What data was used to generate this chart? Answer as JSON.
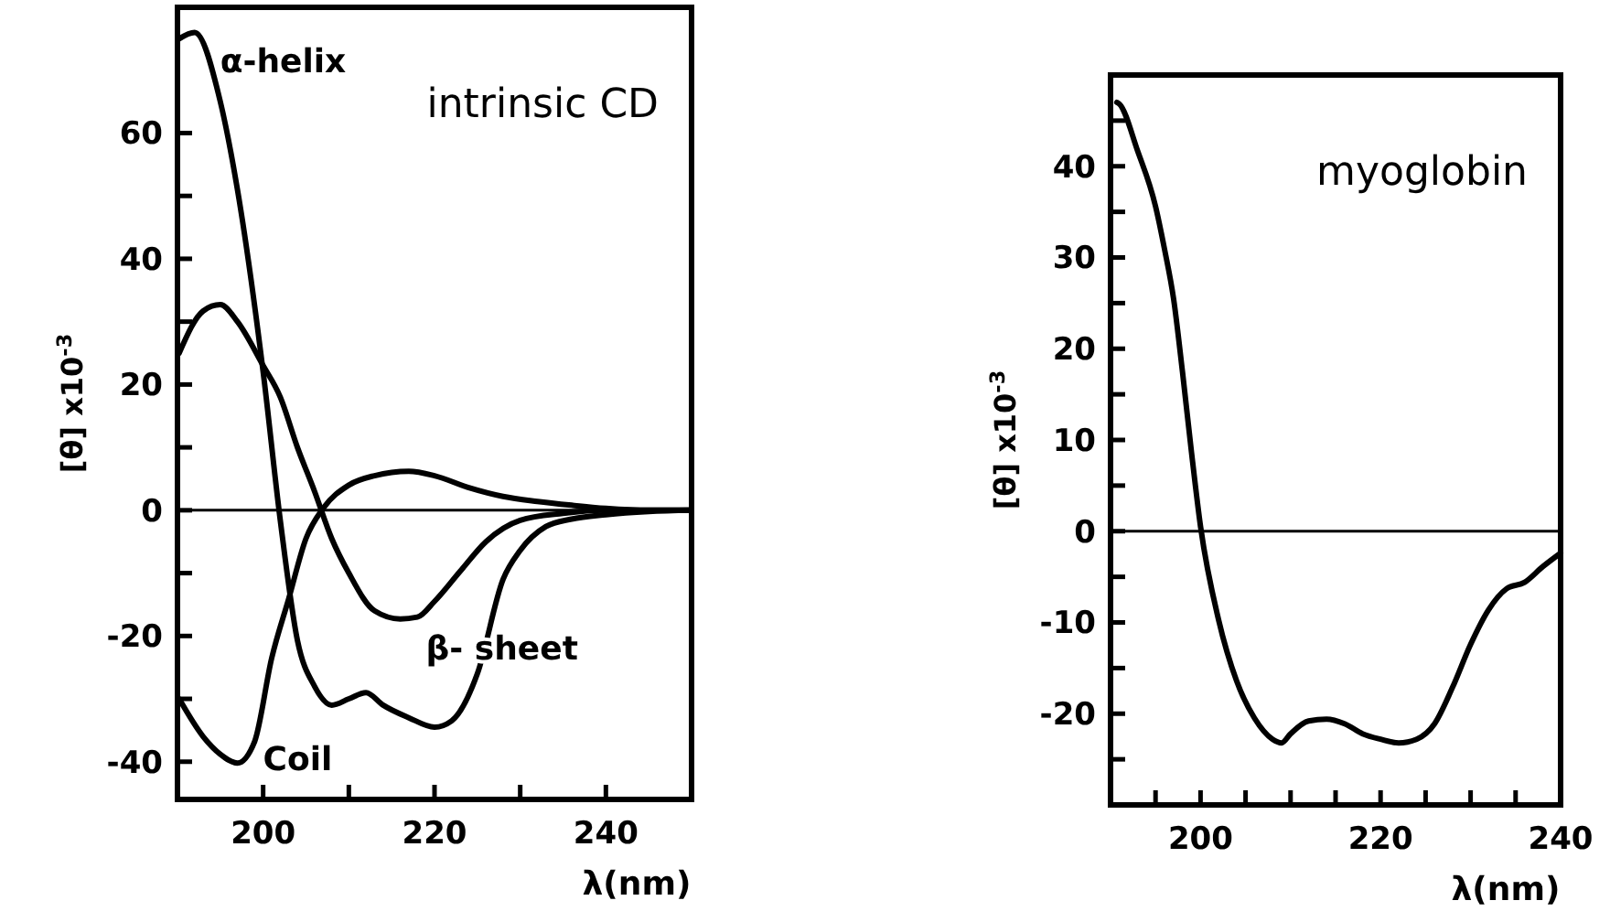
{
  "chart_data": [
    {
      "type": "line",
      "xlabel": "λ(nm)",
      "ylabel": "[θ] x10$^{-3}$",
      "xlim": [
        190,
        250
      ],
      "ylim": [
        -46,
        80
      ],
      "xticks": [
        {
          "value": 200,
          "label": "200"
        },
        {
          "value": 210,
          "label": null
        },
        {
          "value": 220,
          "label": "220"
        },
        {
          "value": 230,
          "label": null
        },
        {
          "value": 240,
          "label": "240"
        }
      ],
      "yticks": [
        {
          "value": -40,
          "label": "-40"
        },
        {
          "value": -30,
          "label": null
        },
        {
          "value": -20,
          "label": "-20"
        },
        {
          "value": -10,
          "label": null
        },
        {
          "value": 0,
          "label": "0"
        },
        {
          "value": 10,
          "label": null
        },
        {
          "value": 20,
          "label": "20"
        },
        {
          "value": 30,
          "label": null
        },
        {
          "value": 40,
          "label": "40"
        },
        {
          "value": 50,
          "label": null
        },
        {
          "value": 60,
          "label": "60"
        }
      ],
      "ref_lines": [
        {
          "axis": "y",
          "value": 0,
          "color": "#000000"
        }
      ],
      "annotations": [
        "intrinsic CD",
        {
          "text": "α-helix",
          "x": 192,
          "y": 76
        },
        {
          "text": "β- sheet",
          "x": 216,
          "y": -17.3
        },
        {
          "text": "Coil",
          "x": 197,
          "y": -40.2
        }
      ],
      "series": [
        {
          "color": "#000000",
          "x": [
            190.2,
            192,
            195,
            197,
            200,
            202,
            204,
            206,
            208,
            210,
            212,
            214,
            217,
            220,
            222,
            225,
            228,
            230,
            233,
            236,
            240,
            245,
            250
          ],
          "values": [
            75,
            76,
            65,
            51,
            22,
            -1.6,
            -20.7,
            -28,
            -31,
            -30,
            -29,
            -31,
            -33,
            -34.5,
            -33.5,
            -26,
            -11,
            -6.4,
            -2.6,
            -1.4,
            -0.7,
            -0.2,
            0
          ]
        },
        {
          "color": "#000000",
          "x": [
            190.2,
            193,
            195,
            197,
            200,
            202,
            204,
            206,
            208,
            210,
            213,
            216,
            218,
            220,
            223,
            226,
            230,
            235,
            240,
            250
          ],
          "values": [
            25,
            31.7,
            32.7,
            30,
            23,
            18,
            10,
            3,
            -4.5,
            -10,
            -16,
            -17.3,
            -17,
            -14.5,
            -9.7,
            -5,
            -1.6,
            -0.5,
            0,
            0
          ]
        },
        {
          "color": "#000000",
          "x": [
            190.2,
            193,
            195,
            197,
            199,
            201,
            203,
            205,
            207,
            210,
            213,
            217,
            220,
            224,
            228,
            232,
            236,
            240,
            245,
            250
          ],
          "values": [
            -30,
            -36,
            -38.8,
            -40.2,
            -36.8,
            -23.5,
            -14,
            -4.5,
            0.3,
            4,
            5.5,
            6.2,
            5.5,
            3.6,
            2.2,
            1.4,
            0.8,
            0.3,
            0,
            0
          ]
        }
      ]
    },
    {
      "type": "line",
      "xlabel": "λ(nm)",
      "ylabel": "[θ] x10$^{-3}$",
      "xlim": [
        190,
        240
      ],
      "ylim": [
        -30,
        50
      ],
      "xticks": [
        {
          "value": 195,
          "label": null
        },
        {
          "value": 200,
          "label": "200"
        },
        {
          "value": 205,
          "label": null
        },
        {
          "value": 210,
          "label": null
        },
        {
          "value": 215,
          "label": null
        },
        {
          "value": 220,
          "label": "220"
        },
        {
          "value": 225,
          "label": null
        },
        {
          "value": 230,
          "label": null
        },
        {
          "value": 235,
          "label": null
        },
        {
          "value": 240,
          "label": "240"
        }
      ],
      "yticks": [
        {
          "value": -25,
          "label": null
        },
        {
          "value": -20,
          "label": "-20"
        },
        {
          "value": -15,
          "label": null
        },
        {
          "value": -10,
          "label": "-10"
        },
        {
          "value": -5,
          "label": null
        },
        {
          "value": 0,
          "label": "0"
        },
        {
          "value": 5,
          "label": null
        },
        {
          "value": 10,
          "label": "10"
        },
        {
          "value": 15,
          "label": null
        },
        {
          "value": 20,
          "label": "20"
        },
        {
          "value": 25,
          "label": null
        },
        {
          "value": 30,
          "label": "30"
        },
        {
          "value": 35,
          "label": null
        },
        {
          "value": 40,
          "label": "40"
        },
        {
          "value": 45,
          "label": null
        }
      ],
      "ref_lines": [
        {
          "axis": "y",
          "value": 0,
          "color": "#000000"
        }
      ],
      "annotations": [
        "myoglobin"
      ],
      "series": [
        {
          "color": "#000000",
          "x": [
            190.7,
            191,
            193,
            195,
            196,
            197,
            198,
            199,
            200,
            202,
            204,
            206,
            208,
            209,
            210,
            212,
            214,
            216,
            218,
            220,
            222,
            224,
            226,
            228,
            230,
            232,
            234,
            236,
            238,
            240
          ],
          "values": [
            47,
            46.8,
            41.7,
            35.6,
            30.9,
            25.5,
            17.4,
            8.6,
            0.5,
            -9.7,
            -16.4,
            -20.5,
            -22.8,
            -23.2,
            -22.2,
            -20.8,
            -20.6,
            -21.1,
            -22.2,
            -22.8,
            -23.2,
            -22.8,
            -21.1,
            -17.1,
            -12.4,
            -8.6,
            -6.3,
            -5.6,
            -3.9,
            -2.4
          ]
        }
      ]
    }
  ]
}
